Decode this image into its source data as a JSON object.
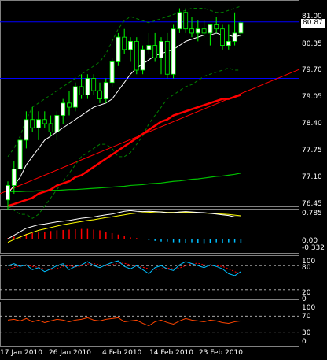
{
  "colors": {
    "background": "#000000",
    "bull_candle": "#ffffff",
    "bear_candle": "#000000",
    "candle_outline": "#00ff00",
    "band_line": "#008000",
    "ma_short": "#ffffff",
    "ma_long_red": "#ff0000",
    "trendline_red": "#ff0000",
    "green_ma": "#00c000",
    "horizontal_line": "#0000ff",
    "macd_main": "#ffffff",
    "macd_signal": "#ffff00",
    "histogram_pos": "#ff0000",
    "histogram_neg": "#00bfff",
    "stoch_main": "#00bfff",
    "stoch_signal": "#ff0000",
    "rsi_line": "#ff4500",
    "level_dash": "#c0c0c0"
  },
  "main": {
    "current_price": "80.87",
    "price_ticks": [
      "81.00",
      "80.35",
      "79.70",
      "79.05",
      "78.40",
      "77.75",
      "77.10",
      "76.45"
    ]
  },
  "macd": {
    "ticks": [
      "0.785",
      "0.00",
      "-0.332"
    ]
  },
  "stochastic": {
    "ticks": [
      "100",
      "80",
      "20",
      "0"
    ]
  },
  "rsi": {
    "ticks": [
      "100",
      "70",
      "30",
      "0"
    ]
  },
  "dates": [
    "17 Jan 2010",
    "26 Jan 2010",
    "4 Feb 2010",
    "14 Feb 2010",
    "23 Feb 2010"
  ],
  "chart_data": {
    "type": "candlestick",
    "symbol_price_axis": [
      76.45,
      81.0
    ],
    "horizontal_levels": [
      80.87,
      80.55,
      79.5
    ],
    "candles": [
      {
        "o": 76.55,
        "h": 77.0,
        "l": 76.3,
        "c": 76.9
      },
      {
        "o": 76.9,
        "h": 77.5,
        "l": 76.7,
        "c": 77.3
      },
      {
        "o": 77.3,
        "h": 78.1,
        "l": 77.2,
        "c": 78.0
      },
      {
        "o": 78.0,
        "h": 78.7,
        "l": 77.8,
        "c": 78.5
      },
      {
        "o": 78.5,
        "h": 78.8,
        "l": 78.2,
        "c": 78.3
      },
      {
        "o": 78.3,
        "h": 78.7,
        "l": 78.0,
        "c": 78.5
      },
      {
        "o": 78.5,
        "h": 78.7,
        "l": 78.3,
        "c": 78.4
      },
      {
        "o": 78.4,
        "h": 78.6,
        "l": 78.1,
        "c": 78.2
      },
      {
        "o": 78.2,
        "h": 78.7,
        "l": 78.0,
        "c": 78.6
      },
      {
        "o": 78.6,
        "h": 79.0,
        "l": 78.4,
        "c": 78.9
      },
      {
        "o": 78.9,
        "h": 79.2,
        "l": 78.6,
        "c": 78.8
      },
      {
        "o": 78.8,
        "h": 79.4,
        "l": 78.7,
        "c": 79.3
      },
      {
        "o": 79.3,
        "h": 79.6,
        "l": 79.0,
        "c": 79.1
      },
      {
        "o": 79.1,
        "h": 79.6,
        "l": 79.0,
        "c": 79.5
      },
      {
        "o": 79.5,
        "h": 79.6,
        "l": 79.1,
        "c": 79.2
      },
      {
        "o": 79.2,
        "h": 79.4,
        "l": 78.9,
        "c": 79.0
      },
      {
        "o": 79.0,
        "h": 79.5,
        "l": 78.9,
        "c": 79.4
      },
      {
        "o": 79.4,
        "h": 80.0,
        "l": 79.3,
        "c": 79.9
      },
      {
        "o": 79.9,
        "h": 80.6,
        "l": 79.8,
        "c": 80.5
      },
      {
        "o": 80.5,
        "h": 80.7,
        "l": 80.1,
        "c": 80.2
      },
      {
        "o": 80.2,
        "h": 80.5,
        "l": 79.9,
        "c": 80.4
      },
      {
        "o": 80.4,
        "h": 80.5,
        "l": 79.6,
        "c": 79.7
      },
      {
        "o": 79.7,
        "h": 80.3,
        "l": 79.6,
        "c": 80.2
      },
      {
        "o": 80.2,
        "h": 80.6,
        "l": 80.1,
        "c": 80.3
      },
      {
        "o": 80.3,
        "h": 80.6,
        "l": 79.9,
        "c": 80.0
      },
      {
        "o": 80.0,
        "h": 80.5,
        "l": 79.6,
        "c": 80.4
      },
      {
        "o": 80.4,
        "h": 80.6,
        "l": 79.5,
        "c": 79.6
      },
      {
        "o": 79.6,
        "h": 80.8,
        "l": 79.5,
        "c": 80.7
      },
      {
        "o": 80.7,
        "h": 81.2,
        "l": 80.6,
        "c": 81.1
      },
      {
        "o": 81.1,
        "h": 81.2,
        "l": 80.6,
        "c": 80.7
      },
      {
        "o": 80.7,
        "h": 81.0,
        "l": 80.5,
        "c": 80.6
      },
      {
        "o": 80.6,
        "h": 80.9,
        "l": 80.4,
        "c": 80.7
      },
      {
        "o": 80.7,
        "h": 80.9,
        "l": 80.5,
        "c": 80.6
      },
      {
        "o": 80.6,
        "h": 80.8,
        "l": 80.3,
        "c": 80.8
      },
      {
        "o": 80.8,
        "h": 81.0,
        "l": 80.6,
        "c": 80.7
      },
      {
        "o": 80.7,
        "h": 80.8,
        "l": 80.2,
        "c": 80.3
      },
      {
        "o": 80.3,
        "h": 80.8,
        "l": 80.2,
        "c": 80.4
      },
      {
        "o": 80.4,
        "h": 81.1,
        "l": 80.3,
        "c": 80.6
      },
      {
        "o": 80.6,
        "h": 80.9,
        "l": 80.5,
        "c": 80.85
      }
    ],
    "ma_short": [
      76.7,
      76.9,
      77.1,
      77.4,
      77.6,
      77.8,
      78.0,
      78.1,
      78.2,
      78.3,
      78.4,
      78.5,
      78.6,
      78.7,
      78.8,
      78.85,
      78.9,
      79.0,
      79.2,
      79.4,
      79.6,
      79.75,
      79.85,
      79.95,
      80.05,
      80.1,
      80.15,
      80.2,
      80.3,
      80.4,
      80.45,
      80.5,
      80.55,
      80.55,
      80.6,
      80.55,
      80.55,
      80.5,
      80.55
    ],
    "ma_long_red": [
      76.4,
      76.45,
      76.5,
      76.55,
      76.6,
      76.7,
      76.75,
      76.8,
      76.9,
      76.95,
      77.0,
      77.1,
      77.15,
      77.25,
      77.35,
      77.45,
      77.55,
      77.65,
      77.75,
      77.85,
      77.95,
      78.05,
      78.15,
      78.25,
      78.35,
      78.45,
      78.5,
      78.6,
      78.65,
      78.7,
      78.75,
      78.8,
      78.85,
      78.9,
      78.95,
      79.0,
      79.0,
      79.05,
      79.1
    ],
    "green_ma": [
      76.75,
      76.75,
      76.75,
      76.76,
      76.76,
      76.77,
      76.77,
      76.78,
      76.78,
      76.79,
      76.8,
      76.8,
      76.81,
      76.82,
      76.83,
      76.84,
      76.85,
      76.86,
      76.87,
      76.88,
      76.9,
      76.91,
      76.92,
      76.94,
      76.95,
      76.96,
      76.98,
      77.0,
      77.01,
      77.03,
      77.05,
      77.06,
      77.08,
      77.1,
      77.12,
      77.13,
      77.15,
      77.17,
      77.2
    ],
    "band_upper": [
      77.6,
      77.8,
      78.1,
      78.5,
      78.8,
      78.9,
      79.0,
      79.1,
      79.2,
      79.3,
      79.4,
      79.5,
      79.6,
      79.7,
      79.8,
      79.9,
      80.1,
      80.4,
      80.7,
      80.9,
      81.0,
      80.95,
      80.9,
      80.85,
      80.9,
      80.95,
      81.0,
      81.05,
      81.1,
      81.15,
      81.2,
      81.2,
      81.2,
      81.15,
      81.1,
      81.1,
      81.15,
      81.2,
      81.25
    ],
    "band_lower": [
      76.4,
      76.3,
      76.2,
      76.2,
      76.1,
      76.2,
      76.4,
      76.6,
      76.8,
      77.0,
      77.2,
      77.4,
      77.6,
      77.7,
      77.8,
      77.9,
      77.9,
      77.8,
      77.6,
      77.6,
      77.7,
      77.9,
      78.1,
      78.4,
      78.6,
      78.8,
      79.0,
      79.1,
      79.2,
      79.3,
      79.35,
      79.45,
      79.55,
      79.6,
      79.65,
      79.7,
      79.75,
      79.7,
      79.7
    ],
    "macd_main": [
      0.0,
      0.1,
      0.2,
      0.3,
      0.35,
      0.4,
      0.42,
      0.45,
      0.48,
      0.5,
      0.52,
      0.55,
      0.58,
      0.6,
      0.62,
      0.65,
      0.68,
      0.7,
      0.74,
      0.78,
      0.8,
      0.78,
      0.77,
      0.78,
      0.77,
      0.76,
      0.74,
      0.74,
      0.76,
      0.77,
      0.76,
      0.75,
      0.74,
      0.72,
      0.7,
      0.68,
      0.66,
      0.62,
      0.62
    ],
    "macd_signal": [
      -0.1,
      -0.02,
      0.05,
      0.12,
      0.18,
      0.24,
      0.28,
      0.32,
      0.36,
      0.4,
      0.43,
      0.46,
      0.49,
      0.52,
      0.54,
      0.57,
      0.6,
      0.62,
      0.65,
      0.68,
      0.71,
      0.73,
      0.74,
      0.75,
      0.76,
      0.76,
      0.75,
      0.75,
      0.75,
      0.75,
      0.75,
      0.74,
      0.73,
      0.72,
      0.71,
      0.7,
      0.69,
      0.67,
      0.65
    ],
    "macd_hist": [
      0.02,
      0.06,
      0.1,
      0.14,
      0.16,
      0.18,
      0.2,
      0.22,
      0.24,
      0.25,
      0.26,
      0.27,
      0.28,
      0.28,
      0.26,
      0.24,
      0.2,
      0.16,
      0.12,
      0.08,
      0.04,
      0.02,
      0.0,
      -0.04,
      -0.06,
      -0.08,
      -0.08,
      -0.1,
      -0.1,
      -0.12,
      -0.1,
      -0.12,
      -0.14,
      -0.12,
      -0.1,
      -0.12,
      -0.1,
      -0.1,
      -0.12
    ],
    "stoch_main": [
      80,
      85,
      78,
      82,
      70,
      75,
      65,
      72,
      80,
      85,
      70,
      78,
      82,
      90,
      80,
      75,
      82,
      88,
      92,
      78,
      72,
      80,
      70,
      60,
      75,
      80,
      72,
      68,
      82,
      90,
      85,
      80,
      75,
      82,
      78,
      72,
      60,
      55,
      65
    ],
    "stoch_signal": [
      70,
      75,
      80,
      82,
      78,
      76,
      72,
      70,
      73,
      78,
      80,
      77,
      79,
      84,
      85,
      82,
      80,
      82,
      86,
      86,
      82,
      78,
      76,
      72,
      70,
      72,
      74,
      72,
      74,
      80,
      85,
      86,
      82,
      80,
      80,
      78,
      72,
      65,
      60
    ],
    "rsi": [
      60,
      62,
      58,
      64,
      56,
      60,
      54,
      58,
      62,
      60,
      56,
      60,
      62,
      66,
      60,
      58,
      62,
      64,
      66,
      56,
      58,
      60,
      52,
      46,
      56,
      60,
      54,
      50,
      58,
      64,
      60,
      58,
      56,
      60,
      58,
      54,
      52,
      56,
      58
    ]
  }
}
